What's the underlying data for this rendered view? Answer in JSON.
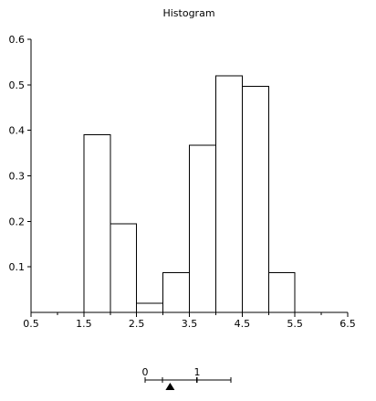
{
  "chart_data": {
    "type": "bar",
    "title": "Histogram",
    "xlabel": "",
    "ylabel": "",
    "xlim": [
      0.5,
      6.5
    ],
    "ylim": [
      0,
      0.6
    ],
    "x_ticks": [
      "0.5",
      "1.5",
      "2.5",
      "3.5",
      "4.5",
      "5.5",
      "6.5"
    ],
    "y_ticks": [
      "0.1",
      "0.2",
      "0.3",
      "0.4",
      "0.5",
      "0.6"
    ],
    "grid": false,
    "bin_width": 0.5,
    "bins": [
      {
        "start": 1.5,
        "end": 2.0,
        "value": 0.39
      },
      {
        "start": 2.0,
        "end": 2.5,
        "value": 0.195
      },
      {
        "start": 2.5,
        "end": 3.0,
        "value": 0.02
      },
      {
        "start": 3.0,
        "end": 3.5,
        "value": 0.087
      },
      {
        "start": 3.5,
        "end": 4.0,
        "value": 0.367
      },
      {
        "start": 4.0,
        "end": 4.5,
        "value": 0.52
      },
      {
        "start": 4.5,
        "end": 5.0,
        "value": 0.497
      },
      {
        "start": 5.0,
        "end": 5.5,
        "value": 0.087
      }
    ]
  },
  "slider": {
    "min_label": "0",
    "max_label": "1",
    "value": 0.48
  }
}
